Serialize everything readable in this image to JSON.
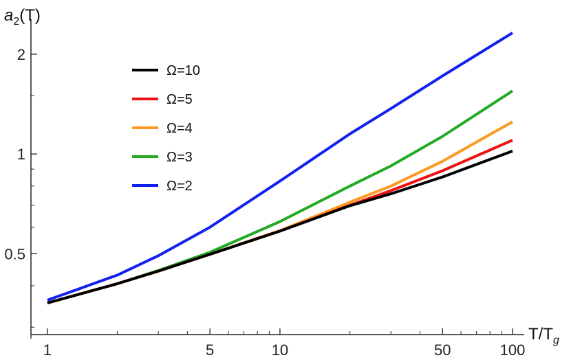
{
  "chart_data": {
    "type": "line",
    "x_scale": "log",
    "y_scale": "log",
    "xlabel_main": "T/T",
    "xlabel_sub": "g",
    "ylabel_main": "a",
    "ylabel_sub": "2",
    "ylabel_suffix": "(T)",
    "xlim": [
      0.85,
      100
    ],
    "ylim": [
      0.285,
      2.55
    ],
    "x_ticks": [
      {
        "value": 1,
        "label": "1"
      },
      {
        "value": 5,
        "label": "5"
      },
      {
        "value": 10,
        "label": "10"
      },
      {
        "value": 50,
        "label": "50"
      },
      {
        "value": 100,
        "label": "100"
      }
    ],
    "x_minor_ticks": [
      2,
      3,
      4,
      6,
      7,
      8,
      9,
      20,
      30,
      40,
      60,
      70,
      80,
      90
    ],
    "y_ticks": [
      {
        "value": 0.5,
        "label": "0.5"
      },
      {
        "value": 1,
        "label": "1"
      },
      {
        "value": 2,
        "label": "2"
      }
    ],
    "y_minor_ticks": [
      0.3,
      0.4,
      0.6,
      0.7,
      0.8,
      0.9,
      1.5
    ],
    "legend_position": "top-left",
    "grid": false,
    "series": [
      {
        "name": "Ω=10",
        "color": "#000000",
        "points": [
          [
            1,
            0.355
          ],
          [
            2,
            0.406
          ],
          [
            3,
            0.443
          ],
          [
            5,
            0.498
          ],
          [
            10,
            0.585
          ],
          [
            20,
            0.698
          ],
          [
            30,
            0.758
          ],
          [
            50,
            0.852
          ],
          [
            100,
            1.02
          ]
        ]
      },
      {
        "name": "Ω=5",
        "color": "#ee1111",
        "points": [
          [
            1,
            0.355
          ],
          [
            2,
            0.406
          ],
          [
            3,
            0.443
          ],
          [
            5,
            0.498
          ],
          [
            10,
            0.585
          ],
          [
            20,
            0.7
          ],
          [
            30,
            0.775
          ],
          [
            50,
            0.89
          ],
          [
            100,
            1.1
          ]
        ]
      },
      {
        "name": "Ω=4",
        "color": "#ff9922",
        "points": [
          [
            1,
            0.355
          ],
          [
            2,
            0.406
          ],
          [
            3,
            0.443
          ],
          [
            5,
            0.498
          ],
          [
            10,
            0.587
          ],
          [
            20,
            0.715
          ],
          [
            30,
            0.8
          ],
          [
            50,
            0.95
          ],
          [
            100,
            1.25
          ]
        ]
      },
      {
        "name": "Ω=3",
        "color": "#22aa22",
        "points": [
          [
            1,
            0.355
          ],
          [
            2,
            0.406
          ],
          [
            3,
            0.445
          ],
          [
            5,
            0.505
          ],
          [
            10,
            0.625
          ],
          [
            20,
            0.8
          ],
          [
            30,
            0.92
          ],
          [
            50,
            1.13
          ],
          [
            100,
            1.55
          ]
        ]
      },
      {
        "name": "Ω=2",
        "color": "#1122ee",
        "points": [
          [
            1,
            0.362
          ],
          [
            2,
            0.431
          ],
          [
            3,
            0.493
          ],
          [
            5,
            0.601
          ],
          [
            10,
            0.828
          ],
          [
            20,
            1.15
          ],
          [
            30,
            1.37
          ],
          [
            50,
            1.72
          ],
          [
            100,
            2.32
          ]
        ]
      }
    ]
  }
}
